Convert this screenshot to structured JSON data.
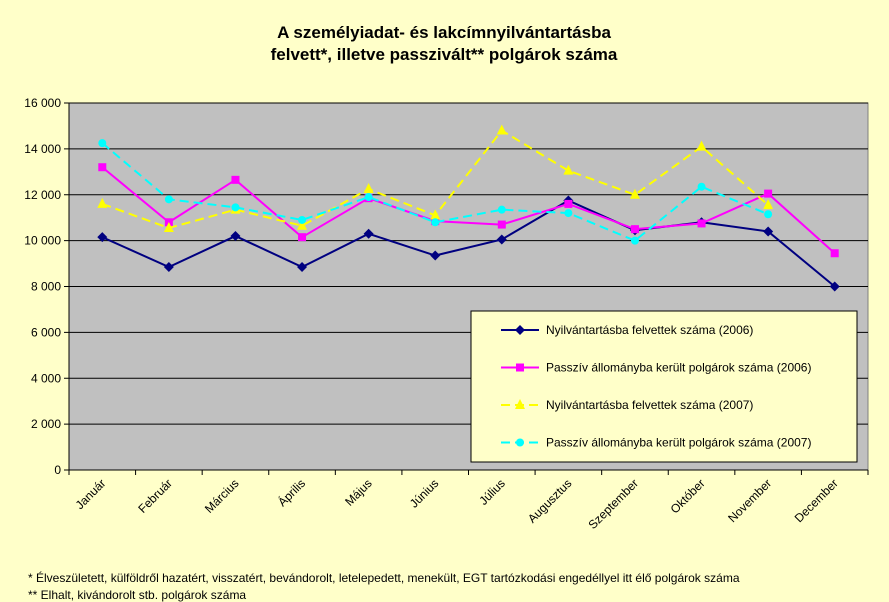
{
  "chart_data": {
    "type": "line",
    "title_lines": [
      "A személyiadat- és lakcímnyilvántartásba",
      "felvett*, illetve passzivált** polgárok száma"
    ],
    "xlabel": "",
    "ylabel": "",
    "categories": [
      "Január",
      "Február",
      "Március",
      "Április",
      "Május",
      "Június",
      "Július",
      "Augusztus",
      "Szeptember",
      "Október",
      "November",
      "December"
    ],
    "ylim": [
      0,
      16000
    ],
    "yticks": [
      0,
      2000,
      4000,
      6000,
      8000,
      10000,
      12000,
      14000,
      16000
    ],
    "ytick_labels": [
      "0",
      "2 000",
      "4 000",
      "6 000",
      "8 000",
      "10 000",
      "12 000",
      "14 000",
      "16 000"
    ],
    "grid": true,
    "legend_position": "bottom-right",
    "plot_background": "#c0c0c0",
    "series": [
      {
        "name": "Nyilvántartásba felvettek száma (2006)",
        "color": "#000080",
        "dash": "solid",
        "marker": "diamond",
        "values": [
          10150,
          8850,
          10200,
          8850,
          10300,
          9350,
          10050,
          11750,
          10450,
          10800,
          10400,
          8000
        ]
      },
      {
        "name": "Passzív állományba került polgárok száma (2006)",
        "color": "#ff00ff",
        "dash": "solid",
        "marker": "square",
        "values": [
          13200,
          10800,
          12650,
          10150,
          11850,
          10850,
          10700,
          11600,
          10500,
          10750,
          12050,
          9450
        ]
      },
      {
        "name": "Nyilvántartásba felvettek száma (2007)",
        "color": "#ffff00",
        "dash": "dashed",
        "marker": "triangle",
        "values": [
          11600,
          10550,
          11350,
          10650,
          12250,
          11100,
          14800,
          13050,
          12000,
          14100,
          11550,
          null
        ]
      },
      {
        "name": "Passzív állományba került polgárok száma (2007)",
        "color": "#00ffff",
        "dash": "dashed",
        "marker": "circle",
        "values": [
          14250,
          11800,
          11450,
          10900,
          11900,
          10800,
          11350,
          11200,
          10000,
          12350,
          11150,
          null
        ]
      }
    ]
  },
  "footnotes": [
    "* Élveszületett, külföldről hazatért, visszatért, bevándorolt, letelepedett, menekült, EGT tartózkodási engedéllyel itt élő  polgárok száma",
    "** Elhalt, kivándorolt stb. polgárok száma"
  ]
}
